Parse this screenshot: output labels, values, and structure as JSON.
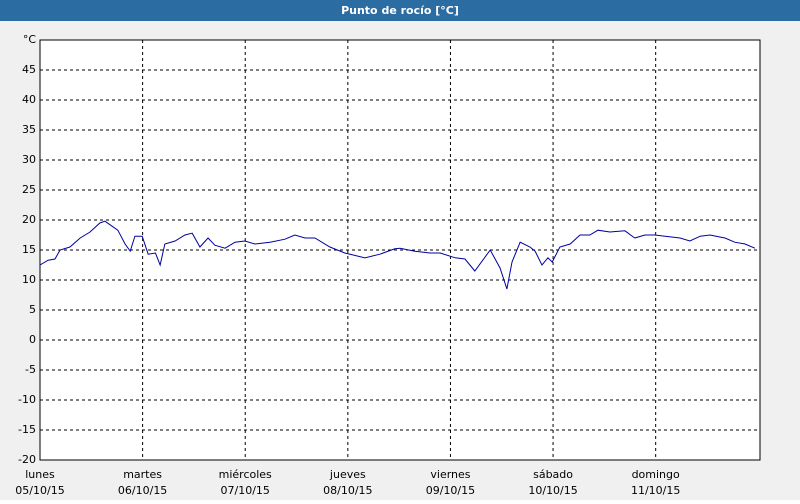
{
  "chart_data": {
    "type": "line",
    "title": "Punto de rocío [°C]",
    "x": [
      0,
      1.9,
      3.5,
      4.7,
      7.0,
      9.4,
      11.7,
      14.0,
      15.2,
      16.4,
      18.2,
      19.9,
      21.1,
      22.2,
      23.9,
      25.3,
      27.0,
      28.1,
      29.2,
      31.6,
      33.9,
      35.6,
      37.4,
      39.3,
      40.9,
      43.3,
      45.6,
      47.9,
      50.3,
      53.8,
      57.3,
      59.6,
      62.0,
      64.3,
      67.8,
      71.3,
      76.0,
      79.5,
      83.0,
      84.2,
      87.7,
      91.2,
      93.6,
      97.1,
      99.4,
      101.7,
      105.3,
      107.6,
      109.2,
      110.4,
      112.3,
      114.6,
      115.8,
      117.4,
      118.8,
      119.8,
      121.6,
      124.0,
      126.3,
      128.6,
      130.5,
      133.3,
      136.8,
      139.1,
      141.5,
      143.8,
      146.2,
      149.7,
      152.0,
      154.4,
      156.7,
      160.2,
      162.5,
      164.9,
      167.2
    ],
    "series": [
      {
        "name": "Punto de rocío",
        "color": "#0000a0",
        "values": [
          12.5,
          13.3,
          13.5,
          15,
          15.5,
          17,
          18,
          19.5,
          19.8,
          19.2,
          18.3,
          16,
          14.8,
          17.3,
          17.3,
          14.3,
          14.5,
          12.5,
          16,
          16.5,
          17.5,
          17.8,
          15.5,
          17,
          15.8,
          15.3,
          16.3,
          16.5,
          16,
          16.3,
          16.8,
          17.5,
          17,
          17,
          15.5,
          14.5,
          13.7,
          14.3,
          15.2,
          15.3,
          14.8,
          14.5,
          14.5,
          13.7,
          13.5,
          11.5,
          15,
          12,
          8.5,
          13,
          16.3,
          15.5,
          14.8,
          12.5,
          13.7,
          13,
          15.5,
          16,
          17.5,
          17.5,
          18.3,
          18,
          18.2,
          17,
          17.5,
          17.5,
          17.3,
          17,
          16.5,
          17.3,
          17.5,
          17,
          16.3,
          16,
          15.3
        ]
      }
    ],
    "xlim": [
      0,
      168.4
    ],
    "xticks": [
      {
        "value": 0,
        "label": "lunes",
        "date": "05/10/15"
      },
      {
        "value": 24,
        "label": "martes",
        "date": "06/10/15"
      },
      {
        "value": 48,
        "label": "miércoles",
        "date": "07/10/15"
      },
      {
        "value": 72,
        "label": "jueves",
        "date": "08/10/15"
      },
      {
        "value": 96,
        "label": "viernes",
        "date": "09/10/15"
      },
      {
        "value": 120,
        "label": "sábado",
        "date": "10/10/15"
      },
      {
        "value": 144,
        "label": "domingo",
        "date": "11/10/15"
      }
    ],
    "ylim": [
      -20,
      50
    ],
    "yticks": [
      -20,
      -15,
      -10,
      -5,
      0,
      5,
      10,
      15,
      20,
      25,
      30,
      35,
      40,
      45,
      {
        "value": 50,
        "label": "°C"
      }
    ],
    "grid": true
  }
}
